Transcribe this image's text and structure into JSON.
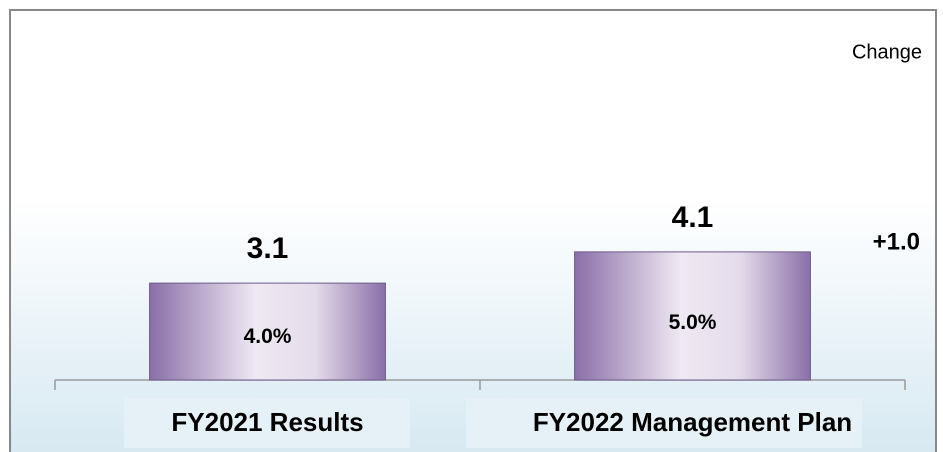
{
  "chart_data": {
    "type": "bar",
    "categories": [
      "FY2021 Results",
      "FY2022 Management Plan"
    ],
    "values": [
      3.1,
      4.1
    ],
    "inner_labels": [
      "4.0%",
      "5.0%"
    ],
    "color": "#8a6fa8",
    "ylim": [
      0,
      12
    ],
    "change_header": "Change",
    "change_label": "+1.0"
  }
}
